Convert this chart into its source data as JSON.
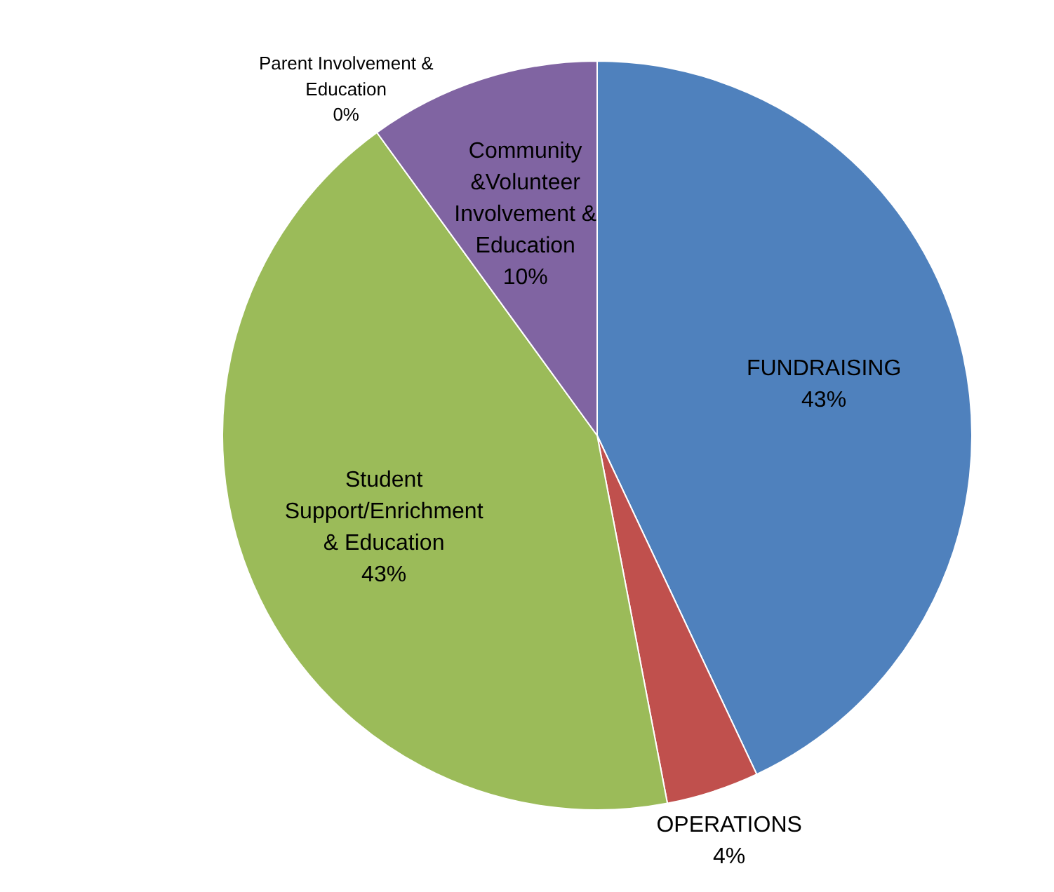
{
  "chart_data": {
    "type": "pie",
    "categories": [
      "FUNDRAISING",
      "OPERATIONS",
      "Student Support/Enrichment & Education",
      "Parent Involvement & Education",
      "Community &Volunteer Involvement & Education"
    ],
    "values": [
      43,
      4,
      43,
      0,
      10
    ],
    "value_labels": [
      "43%",
      "4%",
      "43%",
      "0%",
      "10%"
    ],
    "colors": [
      "#4f81bd",
      "#c0504d",
      "#9bbb59",
      "#4bacc6",
      "#8064a2"
    ],
    "legend": false
  }
}
